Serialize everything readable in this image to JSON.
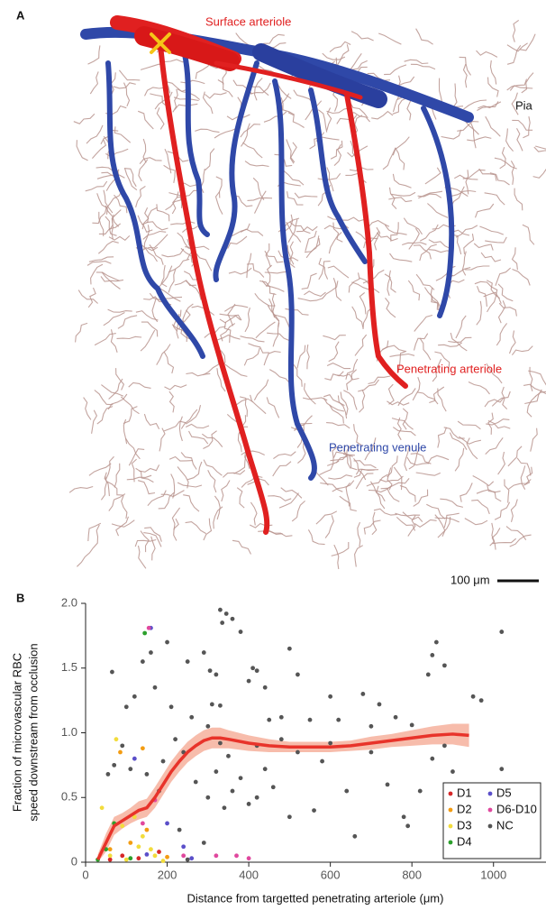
{
  "panel_a": {
    "label": "A",
    "surface_arteriole": "Surface arteriole",
    "pia": "Pia",
    "penetrating_arteriole": "Penetrating arteriole",
    "penetrating_venule": "Penetrating venule",
    "scale_bar": "100 μm"
  },
  "chart_data": {
    "type": "scatter",
    "panel_label": "B",
    "xlabel": "Distance from targetted penetrating arteriole (μm)",
    "ylabel": [
      "Fraction of microvascular RBC",
      "speed downstream from occlusion"
    ],
    "xlim": [
      0,
      1100
    ],
    "xticks": [
      0,
      200,
      400,
      600,
      800,
      1000
    ],
    "ylim": [
      0,
      2
    ],
    "yticks": [
      0,
      0.5,
      {
        "value": 1,
        "label": "1.0"
      },
      1.5,
      {
        "value": 2,
        "label": "2.0"
      }
    ],
    "series": [
      {
        "name": "D1",
        "color": "#d62728",
        "x": [
          60,
          90,
          130,
          180
        ],
        "y": [
          0.02,
          0.05,
          0.03,
          0.08
        ]
      },
      {
        "name": "D2",
        "color": "#f39c12",
        "x": [
          85,
          140,
          60,
          110,
          200,
          150
        ],
        "y": [
          0.85,
          0.88,
          0.1,
          0.15,
          0.04,
          0.25
        ]
      },
      {
        "name": "D3",
        "color": "#f2dc3c",
        "x": [
          75,
          40,
          120,
          140,
          60,
          100,
          160,
          190,
          90,
          130,
          170
        ],
        "y": [
          0.95,
          0.42,
          0.35,
          0.2,
          0.05,
          0.02,
          0.1,
          0.01,
          0.28,
          0.12,
          0.05
        ]
      },
      {
        "name": "D4",
        "color": "#2ca02c",
        "x": [
          145,
          70,
          50,
          110,
          30
        ],
        "y": [
          1.77,
          0.3,
          0.1,
          0.03,
          0.02
        ]
      },
      {
        "name": "D5",
        "color": "#5b4fc9",
        "x": [
          160,
          120,
          200,
          240,
          260,
          150
        ],
        "y": [
          1.81,
          0.8,
          0.3,
          0.12,
          0.03,
          0.06
        ]
      },
      {
        "name": "D6-D10",
        "color": "#e0489e",
        "x": [
          155,
          240,
          320,
          370,
          400,
          170,
          140
        ],
        "y": [
          1.81,
          0.05,
          0.05,
          0.05,
          0.03,
          0.48,
          0.3
        ]
      },
      {
        "name": "NC",
        "color": "#555555",
        "x": [
          330,
          345,
          360,
          335,
          380,
          65,
          160,
          140,
          200,
          250,
          290,
          305,
          320,
          410,
          420,
          400,
          440,
          500,
          520,
          600,
          680,
          720,
          850,
          860,
          880,
          840,
          950,
          970,
          1020,
          100,
          120,
          170,
          210,
          260,
          300,
          310,
          330,
          450,
          480,
          550,
          620,
          700,
          760,
          800,
          55,
          70,
          90,
          110,
          150,
          180,
          190,
          240,
          270,
          300,
          320,
          340,
          360,
          380,
          400,
          420,
          440,
          460,
          500,
          520,
          560,
          580,
          640,
          660,
          700,
          740,
          780,
          790,
          820,
          850,
          880,
          900,
          1020,
          230,
          290,
          250,
          330,
          350,
          420,
          600,
          480,
          220
        ],
        "y": [
          1.95,
          1.92,
          1.88,
          1.85,
          1.78,
          1.47,
          1.62,
          1.55,
          1.7,
          1.55,
          1.62,
          1.48,
          1.45,
          1.5,
          1.48,
          1.4,
          1.35,
          1.65,
          1.45,
          1.28,
          1.3,
          1.22,
          1.6,
          1.7,
          1.52,
          1.45,
          1.28,
          1.25,
          1.78,
          1.2,
          1.28,
          1.35,
          1.2,
          1.12,
          1.05,
          1.22,
          1.21,
          1.1,
          1.12,
          1.1,
          1.1,
          1.05,
          1.12,
          1.06,
          0.68,
          0.75,
          0.9,
          0.72,
          0.68,
          0.55,
          0.78,
          0.85,
          0.62,
          0.5,
          0.7,
          0.42,
          0.55,
          0.65,
          0.45,
          0.5,
          0.72,
          0.58,
          0.35,
          0.85,
          0.4,
          0.78,
          0.55,
          0.2,
          0.85,
          0.6,
          0.35,
          0.28,
          0.55,
          0.8,
          0.9,
          0.7,
          0.72,
          0.25,
          0.15,
          0.02,
          0.92,
          0.82,
          0.9,
          0.92,
          0.95,
          0.95
        ]
      }
    ],
    "fit": {
      "color": "#e8332a",
      "band_color": "#f4a58f",
      "x": [
        30,
        50,
        70,
        90,
        110,
        130,
        150,
        170,
        190,
        210,
        230,
        250,
        270,
        290,
        310,
        330,
        350,
        400,
        450,
        500,
        550,
        600,
        650,
        700,
        750,
        800,
        850,
        900,
        940
      ],
      "y": [
        0.02,
        0.15,
        0.28,
        0.32,
        0.36,
        0.4,
        0.42,
        0.5,
        0.6,
        0.7,
        0.78,
        0.85,
        0.9,
        0.94,
        0.96,
        0.96,
        0.95,
        0.92,
        0.9,
        0.89,
        0.89,
        0.89,
        0.9,
        0.92,
        0.94,
        0.96,
        0.98,
        0.99,
        0.98
      ],
      "lower": [
        0,
        0.08,
        0.21,
        0.26,
        0.3,
        0.33,
        0.35,
        0.42,
        0.52,
        0.62,
        0.7,
        0.77,
        0.82,
        0.86,
        0.88,
        0.88,
        0.88,
        0.86,
        0.85,
        0.85,
        0.85,
        0.85,
        0.86,
        0.87,
        0.89,
        0.9,
        0.91,
        0.91,
        0.89
      ],
      "upper": [
        0.06,
        0.22,
        0.35,
        0.38,
        0.42,
        0.47,
        0.49,
        0.58,
        0.68,
        0.78,
        0.86,
        0.93,
        0.98,
        1.02,
        1.04,
        1.04,
        1.02,
        0.98,
        0.95,
        0.93,
        0.93,
        0.93,
        0.94,
        0.97,
        0.99,
        1.02,
        1.05,
        1.07,
        1.07
      ]
    },
    "legend": "lower right"
  }
}
